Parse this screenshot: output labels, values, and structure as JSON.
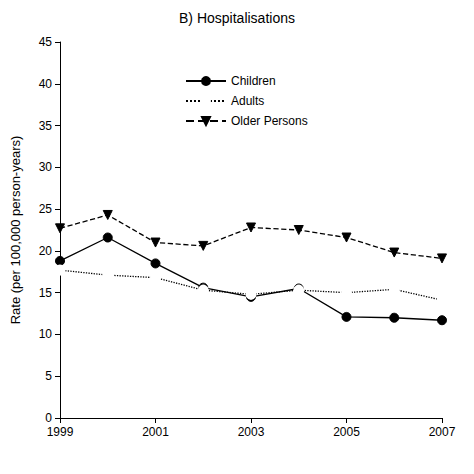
{
  "chart_data": {
    "type": "line",
    "title": "B) Hospitalisations",
    "y_label": "Rate (per 100,000 person-years)",
    "x": [
      1999,
      2000,
      2001,
      2002,
      2003,
      2004,
      2005,
      2006,
      2007
    ],
    "series": [
      {
        "name": "Children",
        "color": "#000000",
        "marker": "circle",
        "line_style": "solid",
        "values": [
          18.8,
          21.6,
          18.5,
          15.6,
          14.5,
          15.5,
          12.1,
          12.0,
          11.7
        ]
      },
      {
        "name": "Adults",
        "color": "#000000",
        "marker": "circle_open",
        "line_style": "dotted",
        "values": [
          17.7,
          17.1,
          16.8,
          15.3,
          14.8,
          15.3,
          15.0,
          15.4,
          14.1
        ]
      },
      {
        "name": "Older Persons",
        "color": "#000000",
        "marker": "triangle_down",
        "line_style": "dashed",
        "values": [
          22.7,
          24.3,
          21.0,
          20.6,
          22.8,
          22.5,
          21.6,
          19.8,
          19.1
        ]
      }
    ],
    "xlim": [
      1999,
      2007
    ],
    "xticks": [
      1999,
      2001,
      2003,
      2005,
      2007
    ],
    "ylim": [
      0,
      45
    ],
    "yticks": [
      0,
      5,
      10,
      15,
      20,
      25,
      30,
      35,
      40,
      45
    ],
    "grid": false,
    "legend": "top"
  }
}
